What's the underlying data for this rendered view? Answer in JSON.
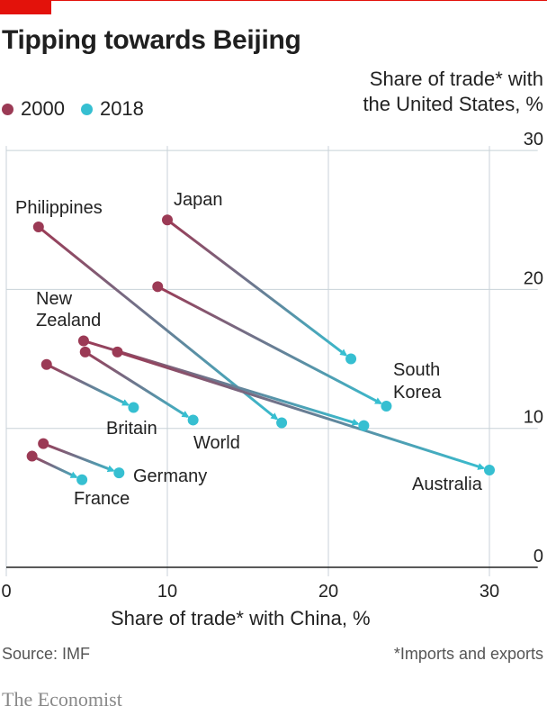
{
  "header": {
    "title": "Tipping towards Beijing",
    "source": "Source: IMF",
    "footnote": "*Imports and exports",
    "brand": "The Economist"
  },
  "colors": {
    "accent_red": "#e3120b",
    "series_2000": "#9b3a55",
    "series_2018": "#36bfd1",
    "grid": "#c8d2d8",
    "axis": "#222222"
  },
  "chart_data": {
    "type": "scatter",
    "title": "Tipping towards Beijing",
    "xlabel": "Share of trade* with China, %",
    "ylabel_lines": [
      "Share of trade* with",
      "the United States, %"
    ],
    "xlim": [
      0,
      33
    ],
    "ylim": [
      0,
      30
    ],
    "x_ticks": [
      0,
      10,
      20,
      30
    ],
    "y_ticks": [
      0,
      10,
      20,
      30
    ],
    "grid": "vertical and horizontal",
    "legend": {
      "position": "top-left",
      "entries": [
        {
          "name": "2000",
          "color": "#9b3a55"
        },
        {
          "name": "2018",
          "color": "#36bfd1"
        }
      ]
    },
    "series": [
      {
        "name": "Japan",
        "x2000": 10.0,
        "y2000": 25.0,
        "x2018": 21.4,
        "y2018": 15.0
      },
      {
        "name": "Philippines",
        "x2000": 2.0,
        "y2000": 24.5,
        "x2018": 17.1,
        "y2018": 10.4
      },
      {
        "name": "South Korea",
        "x2000": 9.4,
        "y2000": 20.2,
        "x2018": 23.6,
        "y2018": 11.6
      },
      {
        "name": "New Zealand",
        "x2000": 4.8,
        "y2000": 16.3,
        "x2018": 22.2,
        "y2018": 10.2
      },
      {
        "name": "Australia",
        "x2000": 6.9,
        "y2000": 15.5,
        "x2018": 30.0,
        "y2018": 7.0
      },
      {
        "name": "World",
        "x2000": 4.9,
        "y2000": 15.5,
        "x2018": 11.6,
        "y2018": 10.6
      },
      {
        "name": "Britain",
        "x2000": 2.5,
        "y2000": 14.6,
        "x2018": 7.9,
        "y2018": 11.5
      },
      {
        "name": "Germany",
        "x2000": 2.3,
        "y2000": 8.9,
        "x2018": 7.0,
        "y2018": 6.8
      },
      {
        "name": "France",
        "x2000": 1.6,
        "y2000": 8.0,
        "x2018": 4.7,
        "y2018": 6.3
      }
    ],
    "annotations": [
      {
        "text": "Japan"
      },
      {
        "text": "Philippines"
      },
      {
        "text": "New"
      },
      {
        "text": "Zealand"
      },
      {
        "text": "South"
      },
      {
        "text": "Korea"
      },
      {
        "text": "Britain"
      },
      {
        "text": "World"
      },
      {
        "text": "Germany"
      },
      {
        "text": "France"
      },
      {
        "text": "Australia"
      }
    ]
  }
}
